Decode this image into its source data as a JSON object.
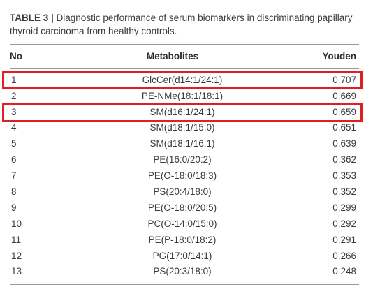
{
  "table": {
    "label": "TABLE 3 |",
    "caption": " Diagnostic performance of serum biomarkers in discriminating papillary thyroid carcinoma from healthy controls.",
    "headers": {
      "no": "No",
      "metabolites": "Metabolites",
      "youden": "Youden"
    },
    "rows": [
      {
        "no": "1",
        "metabolite": "GlcCer(d14:1/24:1)",
        "youden": "0.707"
      },
      {
        "no": "2",
        "metabolite": "PE-NMe(18:1/18:1)",
        "youden": "0.669"
      },
      {
        "no": "3",
        "metabolite": "SM(d16:1/24:1)",
        "youden": "0.659"
      },
      {
        "no": "4",
        "metabolite": "SM(d18:1/15:0)",
        "youden": "0.651"
      },
      {
        "no": "5",
        "metabolite": "SM(d18:1/16:1)",
        "youden": "0.639"
      },
      {
        "no": "6",
        "metabolite": "PE(16:0/20:2)",
        "youden": "0.362"
      },
      {
        "no": "7",
        "metabolite": "PE(O-18:0/18:3)",
        "youden": "0.353"
      },
      {
        "no": "8",
        "metabolite": "PS(20:4/18:0)",
        "youden": "0.352"
      },
      {
        "no": "9",
        "metabolite": "PE(O-18:0/20:5)",
        "youden": "0.299"
      },
      {
        "no": "10",
        "metabolite": "PC(O-14:0/15:0)",
        "youden": "0.292"
      },
      {
        "no": "11",
        "metabolite": "PE(P-18:0/18:2)",
        "youden": "0.291"
      },
      {
        "no": "12",
        "metabolite": "PG(17:0/14:1)",
        "youden": "0.266"
      },
      {
        "no": "13",
        "metabolite": "PS(20:3/18:0)",
        "youden": "0.248"
      }
    ],
    "highlighted_rows": [
      "1",
      "3"
    ],
    "highlight_color": "#e02020"
  }
}
